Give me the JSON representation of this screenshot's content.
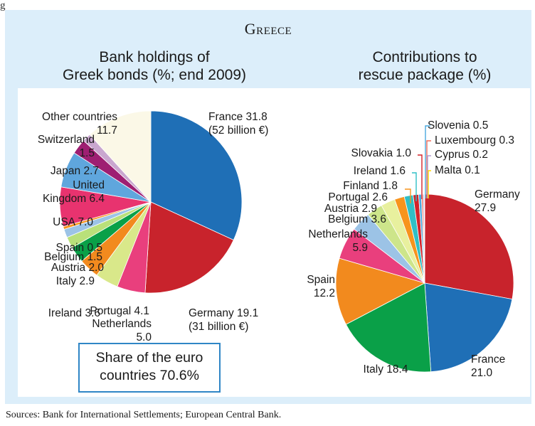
{
  "figure": {
    "label": "g",
    "title": "Greece",
    "sources": "Sources: Bank for International Settlements; European Central Bank.",
    "share_box": {
      "line1": "Share of the euro",
      "line2": "countries 70.6%"
    }
  },
  "chart_data": [
    {
      "type": "pie",
      "title_lines": [
        "Bank holdings of",
        "Greek bonds (%; end 2009)"
      ],
      "start": "12 o'clock, clockwise",
      "slices": [
        {
          "name": "France",
          "value": 31.8,
          "label_lines": [
            "France 31.8",
            "(52 billion €)"
          ],
          "color": "#1f6fb6"
        },
        {
          "name": "Germany",
          "value": 19.1,
          "label_lines": [
            "Germany 19.1",
            "(31 billion €)"
          ],
          "color": "#c8232c"
        },
        {
          "name": "Netherlands",
          "value": 5.0,
          "label_lines": [
            "Netherlands",
            "5.0"
          ],
          "color": "#e93f7d"
        },
        {
          "name": "Portugal",
          "value": 4.1,
          "label_lines": [
            "Portugal 4.1"
          ],
          "color": "#d9e88a"
        },
        {
          "name": "Ireland",
          "value": 3.6,
          "label_lines": [
            "Ireland 3.6"
          ],
          "color": "#f28a1e"
        },
        {
          "name": "Italy",
          "value": 2.9,
          "label_lines": [
            "Italy 2.9"
          ],
          "color": "#0aa048"
        },
        {
          "name": "Austria",
          "value": 2.0,
          "label_lines": [
            "Austria 2.0"
          ],
          "color": "#b9e07a"
        },
        {
          "name": "Belgium",
          "value": 1.5,
          "label_lines": [
            "Belgium 1.5"
          ],
          "color": "#9cc3e6"
        },
        {
          "name": "Spain",
          "value": 0.5,
          "label_lines": [
            "Spain 0.5"
          ],
          "color": "#f7941d"
        },
        {
          "name": "USA",
          "value": 7.0,
          "label_lines": [
            "USA 7.0"
          ],
          "color": "#e8336f"
        },
        {
          "name": "United Kingdom",
          "value": 6.4,
          "label_lines": [
            "United",
            "Kingdom 6.4"
          ],
          "color": "#5fa6dd"
        },
        {
          "name": "Japan",
          "value": 2.7,
          "label_lines": [
            "Japan 2.7"
          ],
          "color": "#9e1f72"
        },
        {
          "name": "Switzerland",
          "value": 1.5,
          "label_lines": [
            "Switzerland",
            "1.5"
          ],
          "color": "#c9a6cf"
        },
        {
          "name": "Other countries",
          "value": 11.7,
          "label_lines": [
            "Other countries",
            "11.7"
          ],
          "color": "#fbf8e7"
        }
      ]
    },
    {
      "type": "pie",
      "title_lines": [
        "Contributions to",
        "rescue package (%)"
      ],
      "start": "12 o'clock, clockwise",
      "slices": [
        {
          "name": "Germany",
          "value": 27.9,
          "label_lines": [
            "Germany",
            "27.9"
          ],
          "color": "#c8232c"
        },
        {
          "name": "France",
          "value": 21.0,
          "label_lines": [
            "France",
            "21.0"
          ],
          "color": "#1f6fb6"
        },
        {
          "name": "Italy",
          "value": 18.4,
          "label_lines": [
            "Italy 18.4"
          ],
          "color": "#0aa048"
        },
        {
          "name": "Spain",
          "value": 12.2,
          "label_lines": [
            "Spain",
            "12.2"
          ],
          "color": "#f28a1e"
        },
        {
          "name": "Netherlands",
          "value": 5.9,
          "label_lines": [
            "Netherlands",
            "5.9"
          ],
          "color": "#e93f7d"
        },
        {
          "name": "Belgium",
          "value": 3.6,
          "label_lines": [
            "Belgium 3.6"
          ],
          "color": "#9cc3e6"
        },
        {
          "name": "Austria",
          "value": 2.9,
          "label_lines": [
            "Austria 2.9"
          ],
          "color": "#cde58a"
        },
        {
          "name": "Portugal",
          "value": 2.6,
          "label_lines": [
            "Portugal 2.6"
          ],
          "color": "#e8f09e"
        },
        {
          "name": "Finland",
          "value": 1.8,
          "label_lines": [
            "Finland 1.8"
          ],
          "color": "#f7941d"
        },
        {
          "name": "Ireland",
          "value": 1.6,
          "label_lines": [
            "Ireland 1.6"
          ],
          "color": "#2fbfc6"
        },
        {
          "name": "Slovakia",
          "value": 1.0,
          "label_lines": [
            "Slovakia 1.0"
          ],
          "color": "#d2232a"
        },
        {
          "name": "Slovenia",
          "value": 0.5,
          "label_lines": [
            "Slovenia 0.5"
          ],
          "color": "#4aa8de"
        },
        {
          "name": "Luxembourg",
          "value": 0.3,
          "label_lines": [
            "Luxembourg 0.3"
          ],
          "color": "#f06c5a"
        },
        {
          "name": "Cyprus",
          "value": 0.2,
          "label_lines": [
            "Cyprus 0.2"
          ],
          "color": "#b39bd1"
        },
        {
          "name": "Malta",
          "value": 0.1,
          "label_lines": [
            "Malta 0.1"
          ],
          "color": "#ffd700"
        }
      ]
    }
  ]
}
